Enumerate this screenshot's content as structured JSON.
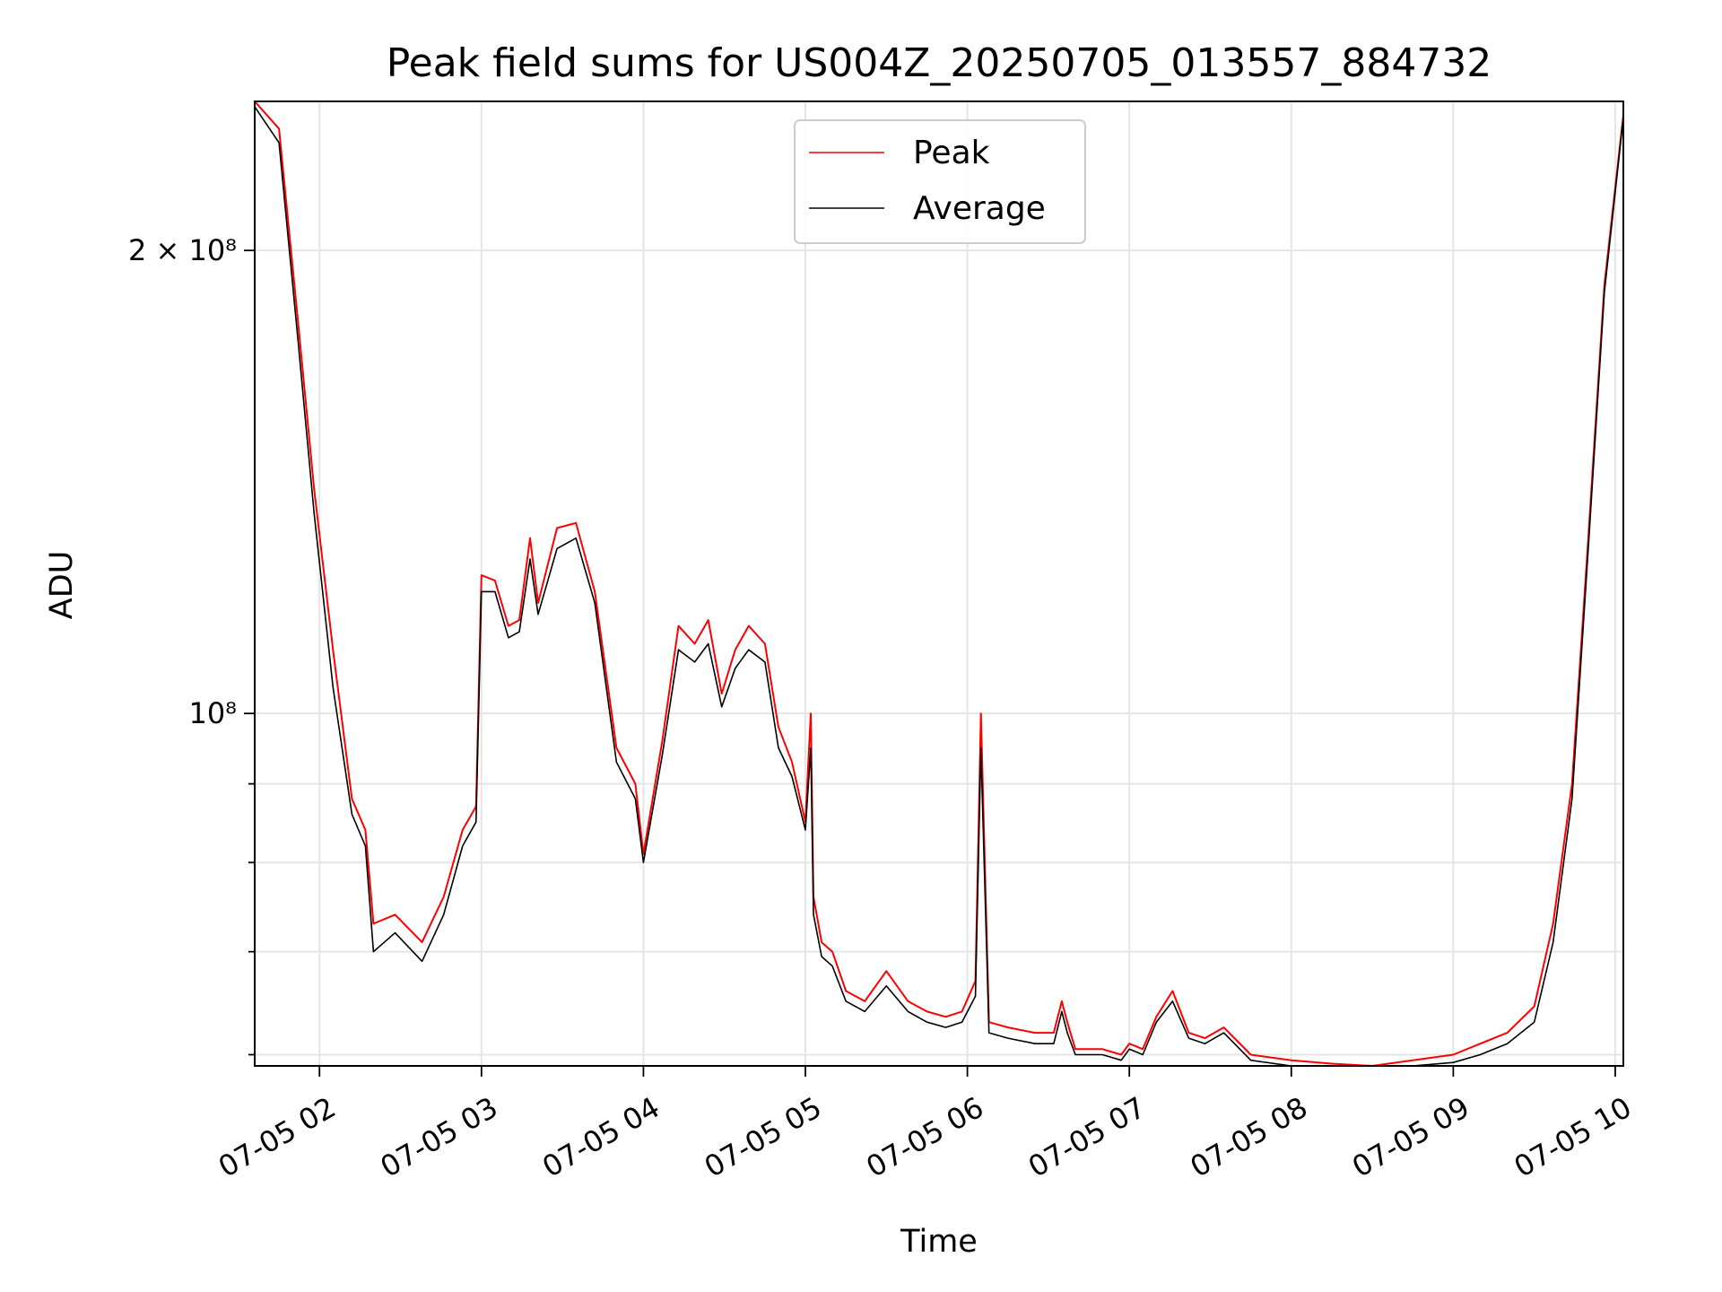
{
  "chart_data": {
    "type": "line",
    "title": "Peak field sums for US004Z_20250705_013557_884732",
    "xlabel": "Time",
    "ylabel": "ADU",
    "yscale": "log",
    "grid": true,
    "legend_position": "top-center",
    "xlim": [
      "2025-07-05 01:36",
      "2025-07-05 10:03"
    ],
    "ylim": [
      59000000,
      250000000
    ],
    "x_ticks": [
      "07-05 02",
      "07-05 03",
      "07-05 04",
      "07-05 05",
      "07-05 06",
      "07-05 07",
      "07-05 08",
      "07-05 09",
      "07-05 10"
    ],
    "x_tick_values": [
      "2025-07-05 02:00",
      "2025-07-05 03:00",
      "2025-07-05 04:00",
      "2025-07-05 05:00",
      "2025-07-05 06:00",
      "2025-07-05 07:00",
      "2025-07-05 08:00",
      "2025-07-05 09:00",
      "2025-07-05 10:00"
    ],
    "y_major_ticks": [
      100000000,
      200000000
    ],
    "y_major_tick_labels": [
      "10⁸",
      "2 × 10⁸"
    ],
    "y_minor_ticks": [
      60000000,
      70000000,
      80000000,
      90000000
    ],
    "series": [
      {
        "name": "Peak",
        "color": "#ff0000",
        "x": [
          "2025-07-05 01:36",
          "2025-07-05 01:45",
          "2025-07-05 01:52",
          "2025-07-05 01:58",
          "2025-07-05 02:05",
          "2025-07-05 02:12",
          "2025-07-05 02:17",
          "2025-07-05 02:20",
          "2025-07-05 02:28",
          "2025-07-05 02:38",
          "2025-07-05 02:46",
          "2025-07-05 02:53",
          "2025-07-05 02:58",
          "2025-07-05 03:00",
          "2025-07-05 03:05",
          "2025-07-05 03:10",
          "2025-07-05 03:14",
          "2025-07-05 03:18",
          "2025-07-05 03:21",
          "2025-07-05 03:28",
          "2025-07-05 03:35",
          "2025-07-05 03:42",
          "2025-07-05 03:50",
          "2025-07-05 03:57",
          "2025-07-05 04:00",
          "2025-07-05 04:07",
          "2025-07-05 04:13",
          "2025-07-05 04:19",
          "2025-07-05 04:24",
          "2025-07-05 04:29",
          "2025-07-05 04:34",
          "2025-07-05 04:39",
          "2025-07-05 04:45",
          "2025-07-05 04:50",
          "2025-07-05 04:55",
          "2025-07-05 05:00",
          "2025-07-05 05:02",
          "2025-07-05 05:03",
          "2025-07-05 05:06",
          "2025-07-05 05:10",
          "2025-07-05 05:15",
          "2025-07-05 05:22",
          "2025-07-05 05:30",
          "2025-07-05 05:38",
          "2025-07-05 05:45",
          "2025-07-05 05:52",
          "2025-07-05 05:58",
          "2025-07-05 06:03",
          "2025-07-05 06:05",
          "2025-07-05 06:08",
          "2025-07-05 06:15",
          "2025-07-05 06:25",
          "2025-07-05 06:32",
          "2025-07-05 06:35",
          "2025-07-05 06:37",
          "2025-07-05 06:40",
          "2025-07-05 06:50",
          "2025-07-05 06:57",
          "2025-07-05 07:00",
          "2025-07-05 07:05",
          "2025-07-05 07:10",
          "2025-07-05 07:16",
          "2025-07-05 07:22",
          "2025-07-05 07:28",
          "2025-07-05 07:35",
          "2025-07-05 07:45",
          "2025-07-05 08:00",
          "2025-07-05 08:15",
          "2025-07-05 08:30",
          "2025-07-05 08:45",
          "2025-07-05 09:00",
          "2025-07-05 09:10",
          "2025-07-05 09:20",
          "2025-07-05 09:30",
          "2025-07-05 09:37",
          "2025-07-05 09:44",
          "2025-07-05 09:50",
          "2025-07-05 09:56",
          "2025-07-05 10:03"
        ],
        "y": [
          250000000,
          240000000,
          180000000,
          140000000,
          110000000,
          88000000,
          84000000,
          73000000,
          74000000,
          71000000,
          76000000,
          84000000,
          87000000,
          123000000,
          122000000,
          114000000,
          115000000,
          130000000,
          118000000,
          132000000,
          133000000,
          120000000,
          95000000,
          90000000,
          81000000,
          96000000,
          114000000,
          111000000,
          115000000,
          103000000,
          110000000,
          114000000,
          111000000,
          98000000,
          93000000,
          85000000,
          100000000,
          76000000,
          71000000,
          70000000,
          66000000,
          65000000,
          68000000,
          65000000,
          64000000,
          63500000,
          64000000,
          67000000,
          100000000,
          63000000,
          62500000,
          62000000,
          62000000,
          65000000,
          63000000,
          60500000,
          60500000,
          60000000,
          61000000,
          60500000,
          63500000,
          66000000,
          62000000,
          61500000,
          62500000,
          60000000,
          59500000,
          59200000,
          59000000,
          59500000,
          60000000,
          61000000,
          62000000,
          64500000,
          73000000,
          90000000,
          130000000,
          190000000,
          245000000
        ]
      },
      {
        "name": "Average",
        "color": "#000000",
        "x": [
          "2025-07-05 01:36",
          "2025-07-05 01:45",
          "2025-07-05 01:52",
          "2025-07-05 01:58",
          "2025-07-05 02:05",
          "2025-07-05 02:12",
          "2025-07-05 02:17",
          "2025-07-05 02:20",
          "2025-07-05 02:28",
          "2025-07-05 02:38",
          "2025-07-05 02:46",
          "2025-07-05 02:53",
          "2025-07-05 02:58",
          "2025-07-05 03:00",
          "2025-07-05 03:05",
          "2025-07-05 03:10",
          "2025-07-05 03:14",
          "2025-07-05 03:18",
          "2025-07-05 03:21",
          "2025-07-05 03:28",
          "2025-07-05 03:35",
          "2025-07-05 03:42",
          "2025-07-05 03:50",
          "2025-07-05 03:57",
          "2025-07-05 04:00",
          "2025-07-05 04:07",
          "2025-07-05 04:13",
          "2025-07-05 04:19",
          "2025-07-05 04:24",
          "2025-07-05 04:29",
          "2025-07-05 04:34",
          "2025-07-05 04:39",
          "2025-07-05 04:45",
          "2025-07-05 04:50",
          "2025-07-05 04:55",
          "2025-07-05 05:00",
          "2025-07-05 05:02",
          "2025-07-05 05:03",
          "2025-07-05 05:06",
          "2025-07-05 05:10",
          "2025-07-05 05:15",
          "2025-07-05 05:22",
          "2025-07-05 05:30",
          "2025-07-05 05:38",
          "2025-07-05 05:45",
          "2025-07-05 05:52",
          "2025-07-05 05:58",
          "2025-07-05 06:03",
          "2025-07-05 06:05",
          "2025-07-05 06:08",
          "2025-07-05 06:15",
          "2025-07-05 06:25",
          "2025-07-05 06:32",
          "2025-07-05 06:35",
          "2025-07-05 06:37",
          "2025-07-05 06:40",
          "2025-07-05 06:50",
          "2025-07-05 06:57",
          "2025-07-05 07:00",
          "2025-07-05 07:05",
          "2025-07-05 07:10",
          "2025-07-05 07:16",
          "2025-07-05 07:22",
          "2025-07-05 07:28",
          "2025-07-05 07:35",
          "2025-07-05 07:45",
          "2025-07-05 08:00",
          "2025-07-05 08:15",
          "2025-07-05 08:30",
          "2025-07-05 08:45",
          "2025-07-05 09:00",
          "2025-07-05 09:10",
          "2025-07-05 09:20",
          "2025-07-05 09:30",
          "2025-07-05 09:37",
          "2025-07-05 09:44",
          "2025-07-05 09:50",
          "2025-07-05 09:56",
          "2025-07-05 10:03"
        ],
        "y": [
          248000000,
          235000000,
          175000000,
          135000000,
          104000000,
          86000000,
          82000000,
          70000000,
          72000000,
          69000000,
          74000000,
          82000000,
          85000000,
          120000000,
          120000000,
          112000000,
          113000000,
          126000000,
          116000000,
          128000000,
          130000000,
          118000000,
          93000000,
          88000000,
          80000000,
          94000000,
          110000000,
          108000000,
          111000000,
          101000000,
          107000000,
          110000000,
          108000000,
          95000000,
          91000000,
          84000000,
          95000000,
          74000000,
          69500000,
          68500000,
          65000000,
          64000000,
          66500000,
          64000000,
          63000000,
          62500000,
          63000000,
          65500000,
          95000000,
          62000000,
          61500000,
          61000000,
          61000000,
          64000000,
          62000000,
          60000000,
          60000000,
          59500000,
          60500000,
          60000000,
          63000000,
          65000000,
          61500000,
          61000000,
          62000000,
          59500000,
          59000000,
          58900000,
          58800000,
          59000000,
          59300000,
          60000000,
          61000000,
          63000000,
          71000000,
          88000000,
          128000000,
          188000000,
          244000000
        ]
      }
    ]
  }
}
